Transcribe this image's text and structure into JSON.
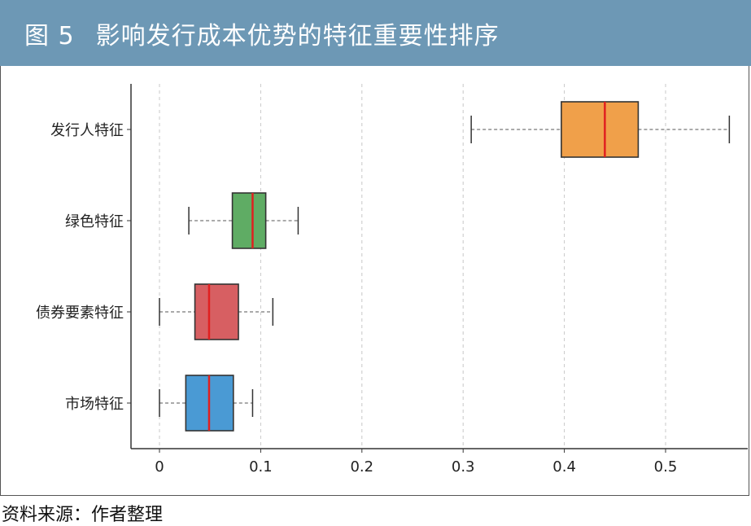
{
  "header": {
    "figure_number": "图 5",
    "title": "影响发行成本优势的特征重要性排序"
  },
  "footer": {
    "source": "资料来源：作者整理"
  },
  "colors": {
    "title_bg": "#6d98b5",
    "median": "#e02020"
  },
  "chart_data": {
    "type": "box",
    "orientation": "horizontal",
    "title": "影响发行成本优势的特征重要性排序",
    "xlabel": "",
    "ylabel": "",
    "xlim": [
      -0.03,
      0.58
    ],
    "xticks": [
      0,
      0.1,
      0.2,
      0.3,
      0.4,
      0.5
    ],
    "xtick_labels": [
      "0",
      "0.1",
      "0.2",
      "0.3",
      "0.4",
      "0.5"
    ],
    "grid": "vertical dashed",
    "categories": [
      "发行人特征",
      "绿色特征",
      "债券要素特征",
      "市场特征"
    ],
    "boxes": [
      {
        "label": "发行人特征",
        "min": 0.308,
        "q1": 0.397,
        "median": 0.44,
        "q3": 0.473,
        "max": 0.563,
        "color": "#f0a04a"
      },
      {
        "label": "绿色特征",
        "min": 0.029,
        "q1": 0.072,
        "median": 0.092,
        "q3": 0.105,
        "max": 0.137,
        "color": "#5fac64"
      },
      {
        "label": "债券要素特征",
        "min": 0.0,
        "q1": 0.035,
        "median": 0.049,
        "q3": 0.078,
        "max": 0.112,
        "color": "#d75f62"
      },
      {
        "label": "市场特征",
        "min": 0.0,
        "q1": 0.026,
        "median": 0.049,
        "q3": 0.073,
        "max": 0.092,
        "color": "#4a9ad4"
      }
    ]
  }
}
